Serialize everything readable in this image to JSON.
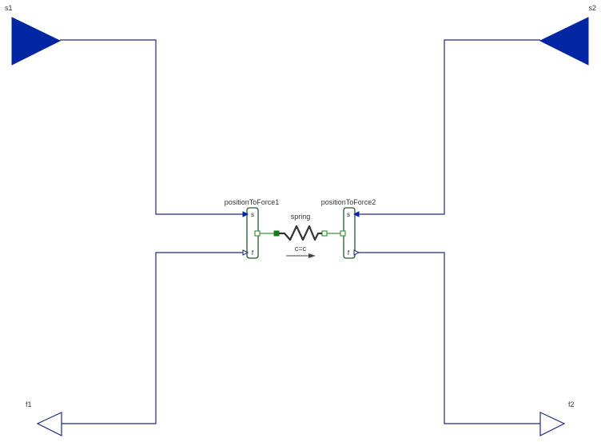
{
  "ports": {
    "s1": {
      "label": "s1"
    },
    "s2": {
      "label": "s2"
    },
    "f1": {
      "label": "f1"
    },
    "f2": {
      "label": "f2"
    }
  },
  "blocks": {
    "position_to_force_1": {
      "name": "positionToForce1",
      "port_s": "s",
      "port_f": "f"
    },
    "position_to_force_2": {
      "name": "positionToForce2",
      "port_s": "s",
      "port_f": "f"
    },
    "spring": {
      "name": "spring",
      "parameter": "c=c"
    }
  },
  "colors": {
    "signal_wire": "#1f2a80",
    "input_port_fill": "#0026a3",
    "block_outline": "#1e5a28",
    "mech_wire": "#3a9a3a",
    "spring_coil": "#333333"
  },
  "icons": {
    "input_port": "filled-triangle-icon",
    "output_port": "hollow-triangle-icon",
    "spring": "zigzag-spring-icon",
    "force_direction": "arrow-right-icon"
  }
}
